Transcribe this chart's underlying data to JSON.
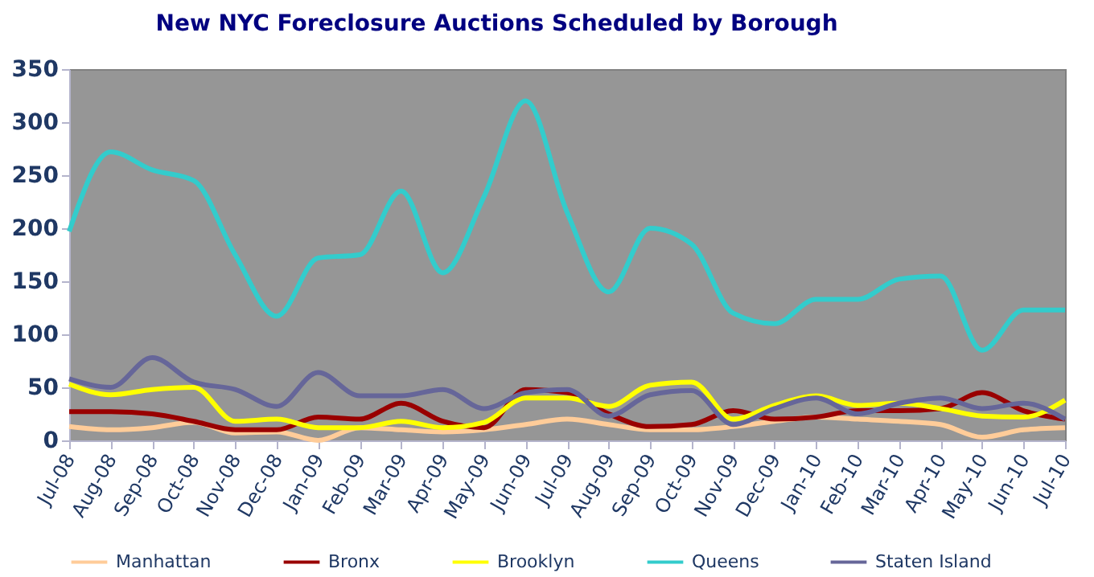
{
  "chart_data": {
    "type": "line",
    "title": "New NYC Foreclosure Auctions Scheduled by Borough",
    "categories": [
      "Jul-08",
      "Aug-08",
      "Sep-08",
      "Oct-08",
      "Nov-08",
      "Dec-08",
      "Jan-09",
      "Feb-09",
      "Mar-09",
      "Apr-09",
      "May-09",
      "Jun-09",
      "Jul-09",
      "Aug-09",
      "Sep-09",
      "Oct-09",
      "Nov-09",
      "Dec-09",
      "Jan-10",
      "Feb-10",
      "Mar-10",
      "Apr-10",
      "May-10",
      "Jun-10",
      "Jul-10"
    ],
    "series": [
      {
        "name": "Manhattan",
        "color": "#ffcc99",
        "values": [
          13,
          10,
          12,
          17,
          7,
          8,
          0,
          12,
          10,
          8,
          10,
          15,
          20,
          15,
          10,
          10,
          13,
          18,
          22,
          20,
          18,
          15,
          3,
          10,
          12
        ]
      },
      {
        "name": "Bronx",
        "color": "#990000",
        "values": [
          27,
          27,
          25,
          18,
          10,
          10,
          22,
          20,
          35,
          18,
          12,
          48,
          45,
          25,
          13,
          15,
          28,
          20,
          22,
          28,
          28,
          30,
          45,
          28,
          20
        ]
      },
      {
        "name": "Brooklyn",
        "color": "#ffff00",
        "values": [
          53,
          43,
          48,
          50,
          18,
          20,
          12,
          12,
          18,
          12,
          17,
          40,
          40,
          32,
          52,
          55,
          20,
          33,
          42,
          33,
          35,
          30,
          23,
          22,
          38
        ]
      },
      {
        "name": "Queens",
        "color": "#33cccc",
        "values": [
          197,
          272,
          255,
          245,
          175,
          117,
          172,
          175,
          235,
          158,
          230,
          320,
          215,
          140,
          200,
          185,
          120,
          110,
          133,
          133,
          152,
          155,
          85,
          123,
          123
        ]
      },
      {
        "name": "Staten Island",
        "color": "#666699",
        "values": [
          58,
          50,
          78,
          55,
          48,
          32,
          64,
          42,
          42,
          48,
          30,
          45,
          48,
          23,
          43,
          47,
          15,
          30,
          40,
          25,
          35,
          40,
          30,
          35,
          20
        ]
      }
    ],
    "ylim": [
      0,
      350
    ],
    "yticks": [
      0,
      50,
      100,
      150,
      200,
      250,
      300,
      350
    ],
    "grid": false,
    "legend": "bottom",
    "marker": "none",
    "line_style": "solid"
  }
}
